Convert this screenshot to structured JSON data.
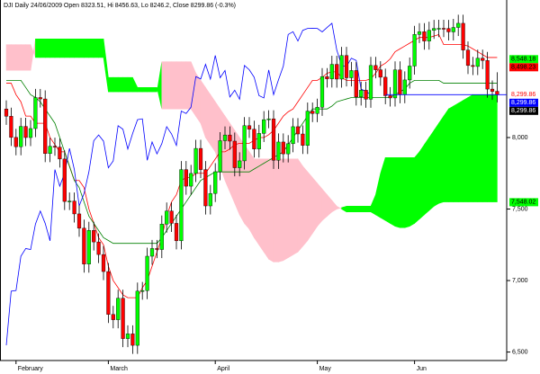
{
  "chart_data": {
    "type": "candlestick",
    "title": "DJI Daily 24/06/2009 Open 8323.51, Hi 8456.63, Lo 8246.2, Close 8299.86 (-0.3%)",
    "categories": [
      null,
      null,
      "February",
      null,
      null,
      null,
      null,
      null,
      null,
      null,
      null,
      null,
      null,
      null,
      null,
      null,
      null,
      null,
      null,
      null,
      null,
      "March",
      null,
      null,
      null,
      null,
      null,
      null,
      null,
      null,
      null,
      null,
      null,
      null,
      null,
      null,
      null,
      null,
      null,
      null,
      null,
      null,
      null,
      "April",
      null,
      null,
      null,
      null,
      null,
      null,
      null,
      null,
      null,
      null,
      null,
      null,
      null,
      null,
      null,
      null,
      null,
      null,
      null,
      null,
      "May",
      null,
      null,
      null,
      null,
      null,
      null,
      null,
      null,
      null,
      null,
      null,
      null,
      null,
      null,
      null,
      null,
      null,
      null,
      null,
      "Jun",
      null,
      null,
      null,
      null,
      null,
      null,
      null,
      null,
      null,
      null,
      null,
      null,
      null,
      null,
      null,
      null,
      null
    ],
    "open": [
      8200,
      8149,
      8001,
      7936,
      8078,
      8000,
      8063,
      8280,
      8270,
      7888,
      7939,
      7933,
      7850,
      7553,
      7556,
      7466,
      7366,
      7115,
      7351,
      7270,
      7182,
      7063,
      6763,
      6726,
      6876,
      6594,
      6627,
      6547,
      6926,
      6930,
      7170,
      7224,
      7217,
      7395,
      7486,
      7400,
      7278,
      7776,
      7660,
      7749,
      7924,
      7776,
      7522,
      7609,
      7761,
      7978,
      8018,
      7975,
      7789,
      7837,
      8083,
      8058,
      7920,
      8029,
      8125,
      8131,
      7841,
      7969,
      7886,
      7957,
      8076,
      8025,
      7945,
      8185,
      8168,
      8212,
      8426,
      8410,
      8512,
      8409,
      8574,
      8418,
      8469,
      8284,
      8331,
      8268,
      8504,
      8474,
      8422,
      8293,
      8277,
      8473,
      8300,
      8403,
      8500,
      8721,
      8740,
      8675,
      8750,
      8763,
      8764,
      8763,
      8739,
      8770,
      8799,
      8612,
      8504,
      8497,
      8555,
      8539,
      8339,
      8323.51
    ],
    "high": [
      8260,
      8209,
      8061,
      8138,
      8138,
      8123,
      8340,
      8340,
      8330,
      7999,
      7999,
      7993,
      7910,
      7616,
      7616,
      7526,
      7426,
      7411,
      7411,
      7330,
      7242,
      7123,
      6823,
      6936,
      6936,
      6687,
      6687,
      6986,
      6990,
      7230,
      7284,
      7284,
      7455,
      7546,
      7546,
      7460,
      7836,
      7836,
      7809,
      7984,
      7984,
      7836,
      7669,
      7821,
      8038,
      8078,
      8078,
      8035,
      7897,
      8143,
      8143,
      8118,
      8089,
      8185,
      8191,
      8191,
      8029,
      8029,
      8017,
      8136,
      8136,
      8085,
      8245,
      8245,
      8272,
      8486,
      8486,
      8572,
      8572,
      8634,
      8634,
      8529,
      8529,
      8391,
      8391,
      8564,
      8564,
      8534,
      8482,
      8353,
      8533,
      8533,
      8463,
      8560,
      8781,
      8800,
      8800,
      8810,
      8823,
      8824,
      8824,
      8823,
      8830,
      8859,
      8859,
      8672,
      8564,
      8615,
      8615,
      8599,
      8399,
      8456.63
    ],
    "low": [
      8089,
      7941,
      7876,
      7876,
      7940,
      7940,
      8003,
      8210,
      7828,
      7828,
      7873,
      7790,
      7493,
      7493,
      7406,
      7306,
      7055,
      7055,
      7210,
      7122,
      7003,
      6703,
      6666,
      6666,
      6534,
      6534,
      6487,
      6487,
      6866,
      6870,
      7110,
      7157,
      7157,
      7335,
      7340,
      7218,
      7218,
      7600,
      7600,
      7689,
      7716,
      7462,
      7462,
      7549,
      7701,
      7918,
      7915,
      7729,
      7729,
      7777,
      7998,
      7860,
      7860,
      7969,
      8065,
      7781,
      7781,
      7826,
      7826,
      7897,
      7965,
      7885,
      7885,
      8108,
      8108,
      8152,
      8350,
      8350,
      8349,
      8349,
      8358,
      8358,
      8224,
      8224,
      8208,
      8208,
      8414,
      8362,
      8233,
      8217,
      8217,
      8240,
      8240,
      8343,
      8440,
      8661,
      8615,
      8615,
      8690,
      8703,
      8703,
      8679,
      8679,
      8710,
      8552,
      8444,
      8437,
      8437,
      8479,
      8279,
      8263,
      8246.2
    ],
    "close": [
      8149,
      8001,
      7936,
      8078,
      8000,
      8063,
      8280,
      8270,
      7888,
      7939,
      7933,
      7850,
      7553,
      7556,
      7466,
      7366,
      7115,
      7351,
      7270,
      7182,
      7063,
      6763,
      6726,
      6876,
      6594,
      6627,
      6547,
      6926,
      6930,
      7170,
      7224,
      7217,
      7395,
      7486,
      7400,
      7278,
      7776,
      7660,
      7749,
      7924,
      7776,
      7522,
      7609,
      7761,
      7978,
      8018,
      7975,
      7789,
      7837,
      8083,
      8058,
      7920,
      8029,
      8125,
      8131,
      7841,
      7969,
      7886,
      7957,
      8076,
      8025,
      7945,
      8185,
      8168,
      8212,
      8426,
      8410,
      8512,
      8409,
      8574,
      8418,
      8469,
      8284,
      8331,
      8268,
      8504,
      8474,
      8422,
      8293,
      8277,
      8473,
      8300,
      8403,
      8500,
      8721,
      8740,
      8675,
      8750,
      8763,
      8764,
      8763,
      8739,
      8770,
      8799,
      8612,
      8504,
      8497,
      8555,
      8539,
      8339,
      8323,
      8299.86
    ],
    "up_color": "#00ff00",
    "down_color": "#ff0000",
    "series": [
      {
        "color": "#ff0000",
        "values": [
          8380,
          8380,
          8300,
          8250,
          8150,
          8150,
          8100,
          8100,
          8100,
          8000,
          7950,
          7900,
          7900,
          7800,
          7700,
          7700,
          7650,
          7500,
          7400,
          7300,
          7250,
          7100,
          7000,
          6950,
          6900,
          6880,
          6880,
          6880,
          6950,
          7000,
          7100,
          7200,
          7300,
          7450,
          7550,
          7600,
          7700,
          7720,
          7720,
          7750,
          7750,
          7750,
          7800,
          7850,
          7900,
          7900,
          7920,
          7950,
          7960,
          7960,
          7960,
          7980,
          8000,
          8000,
          8020,
          8050,
          8100,
          8150,
          8180,
          8200,
          8250,
          8300,
          8350,
          8400,
          8400,
          8420,
          8450,
          8460,
          8460,
          8420,
          8400,
          8400,
          8400,
          8400,
          8400,
          8410,
          8450,
          8500,
          8520,
          8550,
          8600,
          8620,
          8640,
          8660,
          8680,
          8700,
          8700,
          8700,
          8710,
          8720,
          8650,
          8650,
          8650,
          8650,
          8650,
          8640,
          8620,
          8600,
          8580,
          8560,
          8560,
          8560
        ]
      },
      {
        "color": "#008000",
        "values": [
          8400,
          8400,
          8400,
          8400,
          8350,
          8300,
          8280,
          8250,
          8200,
          8150,
          8100,
          8000,
          7900,
          7800,
          7700,
          7650,
          7550,
          7450,
          7400,
          7350,
          7300,
          7280,
          7260,
          7260,
          7260,
          7260,
          7260,
          7260,
          7260,
          7260,
          7260,
          7260,
          7300,
          7350,
          7400,
          7450,
          7500,
          7550,
          7600,
          7650,
          7700,
          7720,
          7740,
          7760,
          7760,
          7760,
          7760,
          7760,
          7760,
          7760,
          7760,
          7780,
          7800,
          7820,
          7840,
          7860,
          7880,
          7900,
          7950,
          8000,
          8050,
          8100,
          8150,
          8200,
          8200,
          8200,
          8200,
          8220,
          8250,
          8260,
          8270,
          8280,
          8280,
          8280,
          8280,
          8280,
          8280,
          8280,
          8280,
          8280,
          8300,
          8320,
          8340,
          8380,
          8400,
          8400,
          8400,
          8400,
          8400,
          8400,
          8380,
          8380,
          8380,
          8380,
          8380,
          8380,
          8380,
          8380,
          8380,
          8380,
          8380,
          8380
        ]
      },
      {
        "color": "#0000ff",
        "values": [
          6547,
          6926,
          6930,
          7170,
          7224,
          7217,
          7395,
          7486,
          7400,
          7278,
          7776,
          7660,
          7749,
          7924,
          7776,
          7522,
          7609,
          7761,
          7978,
          8018,
          7975,
          7789,
          7837,
          8083,
          8058,
          7920,
          8029,
          8125,
          8131,
          7841,
          7969,
          7886,
          7957,
          8076,
          8025,
          7945,
          8185,
          8168,
          8212,
          8426,
          8410,
          8512,
          8409,
          8574,
          8418,
          8469,
          8284,
          8331,
          8268,
          8504,
          8474,
          8422,
          8293,
          8277,
          8473,
          8300,
          8403,
          8500,
          8721,
          8740,
          8675,
          8750,
          8763,
          8764,
          8763,
          8739,
          8770,
          8799,
          8612,
          8504,
          8497,
          8555,
          8539,
          8339,
          8323,
          8299.86,
          null,
          null,
          null,
          null,
          null,
          null,
          null,
          null,
          null,
          null,
          null,
          null,
          null,
          null,
          null,
          null,
          null,
          null,
          null,
          null,
          null,
          null,
          null,
          null,
          null,
          null
        ]
      }
    ],
    "cloud": {
      "bull_color": "#00ff00",
      "bear_color": "#ffc0cb",
      "span_a": [
        8470,
        8470,
        8470,
        8470,
        8470,
        8470,
        8690,
        8690,
        8690,
        8690,
        8690,
        8690,
        8690,
        8690,
        8690,
        8690,
        8690,
        8690,
        8690,
        8690,
        8690,
        8420,
        8420,
        8420,
        8420,
        8420,
        8420,
        8350,
        8350,
        8350,
        8350,
        8350,
        8200,
        8200,
        8200,
        8200,
        8200,
        8200,
        8200,
        8150,
        8100,
        8000,
        7950,
        7900,
        7800,
        7700,
        7620,
        7540,
        7460,
        7400,
        7360,
        7300,
        7250,
        7200,
        7150,
        7130,
        7130,
        7140,
        7160,
        7180,
        7200,
        7240,
        7280,
        7330,
        7380,
        7420,
        7450,
        7480,
        7500,
        7510,
        7520,
        7520,
        7520,
        7520,
        7520,
        7520,
        7600,
        7750,
        7860,
        7860,
        7860,
        7860,
        7860,
        7860,
        7860,
        7900,
        7950,
        8000,
        8050,
        8100,
        8150,
        8200,
        8220,
        8240,
        8260,
        8280,
        8300,
        8300,
        8300,
        8300,
        8300,
        8300
      ],
      "span_b": [
        8650,
        8650,
        8650,
        8650,
        8650,
        8650,
        8560,
        8560,
        8560,
        8560,
        8560,
        8560,
        8560,
        8560,
        8560,
        8560,
        8560,
        8560,
        8560,
        8560,
        8560,
        8320,
        8320,
        8320,
        8320,
        8320,
        8320,
        8320,
        8320,
        8320,
        8320,
        8320,
        8530,
        8530,
        8530,
        8530,
        8530,
        8530,
        8530,
        8450,
        8400,
        8350,
        8300,
        8250,
        8200,
        8150,
        8100,
        8050,
        8000,
        7950,
        7900,
        7850,
        7850,
        7850,
        7850,
        7850,
        7850,
        7850,
        7850,
        7850,
        7850,
        7800,
        7760,
        7720,
        7680,
        7640,
        7600,
        7560,
        7520,
        7500,
        7480,
        7480,
        7480,
        7480,
        7480,
        7480,
        7460,
        7440,
        7420,
        7400,
        7380,
        7370,
        7370,
        7380,
        7400,
        7430,
        7460,
        7490,
        7520,
        7540,
        7550,
        7550,
        7550,
        7550,
        7550,
        7550,
        7550,
        7550,
        7550,
        7550,
        7550,
        7550
      ]
    },
    "ylim": [
      6447,
      8962
    ],
    "yticks": [
      {
        "value": 6500,
        "label": "6,500"
      },
      {
        "value": 7000,
        "label": "7,000"
      },
      {
        "value": 7500,
        "label": "7,500"
      },
      {
        "value": 8000,
        "label": "8,000"
      }
    ],
    "annotations": [
      {
        "label": "8,548.18",
        "value": 8548.18,
        "background": "#00ff00",
        "color": "#000000"
      },
      {
        "label": "8,498.23",
        "value": 8498.23,
        "background": "#ff0000",
        "color": "#000000"
      },
      {
        "label": "8,299.86",
        "value": 8299.86,
        "background": "none",
        "color": "#ff0000"
      },
      {
        "label": "8,299.86",
        "value": 8299.86,
        "background": "#0000ff",
        "color": "#ffffff",
        "line_color": "#0000ff"
      },
      {
        "label": "8,299.86",
        "value": 8299.86,
        "background": "#000000",
        "color": "#ffffff"
      },
      {
        "label": "7,548.02",
        "value": 7548.02,
        "background": "#00ff00",
        "color": "#000000"
      }
    ]
  }
}
